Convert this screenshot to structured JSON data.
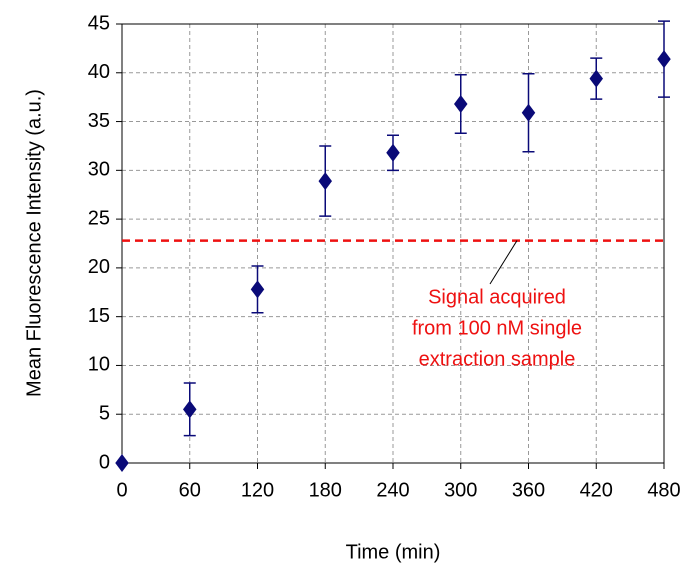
{
  "chart_data": {
    "type": "scatter",
    "xlabel": "Time (min)",
    "ylabel": "Mean Fluorescence Intensity (a.u.)",
    "x": [
      0,
      60,
      120,
      180,
      240,
      300,
      360,
      420,
      480
    ],
    "series": [
      {
        "color": "#0a0a78",
        "values": [
          0,
          5.5,
          17.8,
          28.9,
          31.8,
          36.8,
          35.9,
          39.4,
          41.4
        ],
        "errors": [
          0,
          2.7,
          2.4,
          3.6,
          1.8,
          3.0,
          4.0,
          2.1,
          3.9
        ]
      }
    ],
    "xlim": [
      0,
      480
    ],
    "ylim": [
      0,
      45
    ],
    "xticks": [
      0,
      60,
      120,
      180,
      240,
      300,
      360,
      420,
      480
    ],
    "yticks": [
      0,
      5,
      10,
      15,
      20,
      25,
      30,
      35,
      40,
      45
    ],
    "grid": true,
    "marker": "diamond",
    "reference_line": {
      "value": 22.8,
      "color": "#ee1111",
      "dashed": true
    },
    "annotation": [
      "Signal acquired",
      "from 100 nM single",
      "extraction sample"
    ]
  }
}
